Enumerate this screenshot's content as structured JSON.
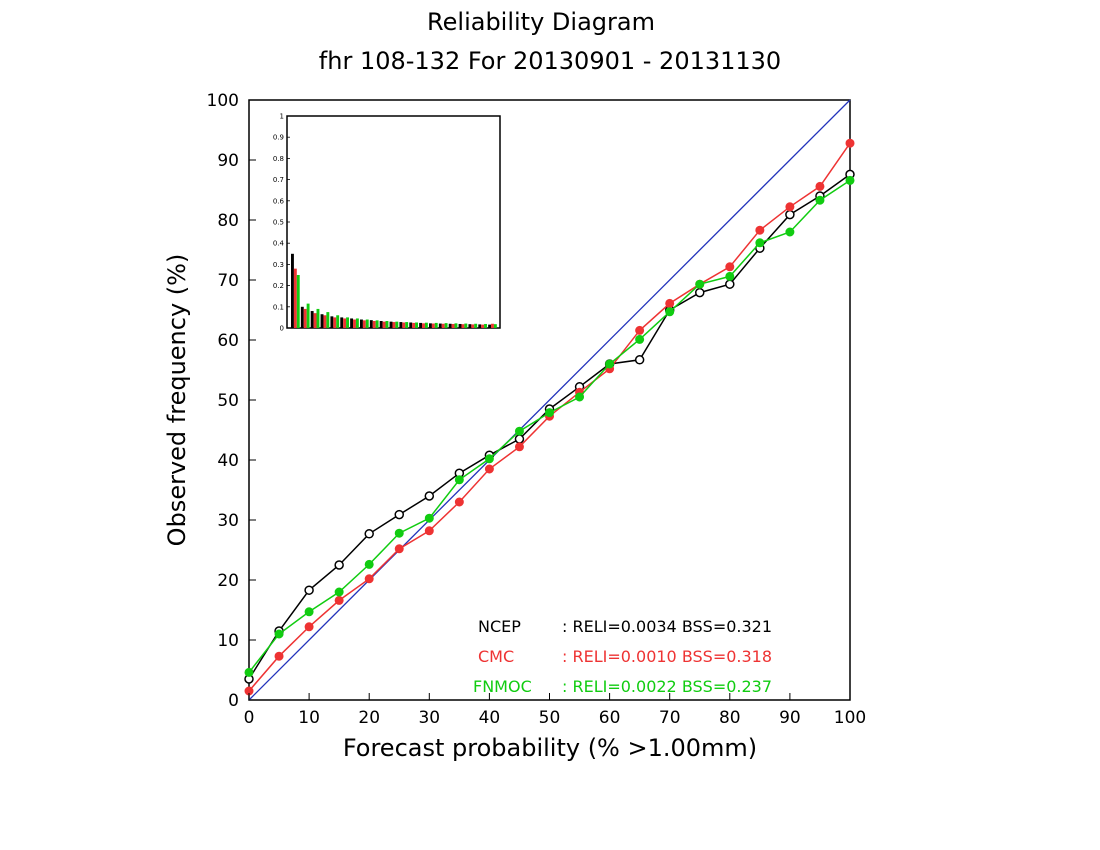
{
  "chart_data": {
    "type": "line",
    "title": "Reliability Diagram",
    "subtitle": "fhr 108-132 For 20130901 - 20131130",
    "xlabel": "Forecast probability (% >1.00mm)",
    "ylabel": "Observed frequency (%)",
    "xlim": [
      0,
      100
    ],
    "ylim": [
      0,
      100
    ],
    "xticks": [
      "0",
      "10",
      "20",
      "30",
      "40",
      "50",
      "60",
      "70",
      "80",
      "90",
      "100"
    ],
    "yticks": [
      "0",
      "10",
      "20",
      "30",
      "40",
      "50",
      "60",
      "70",
      "80",
      "90",
      "100"
    ],
    "x": [
      0,
      5,
      10,
      15,
      20,
      25,
      30,
      35,
      40,
      45,
      50,
      55,
      60,
      65,
      70,
      75,
      80,
      85,
      90,
      95,
      100
    ],
    "diagonal_color": "#2233bb",
    "grid": false,
    "legend_position": "bottom-right",
    "series": [
      {
        "name": "NCEP",
        "stats": ": RELI=0.0034 BSS=0.321",
        "color": "#000000",
        "marker": "open-circle",
        "values": [
          3.5,
          11.5,
          18.3,
          22.5,
          27.7,
          30.9,
          34.0,
          37.8,
          40.8,
          43.5,
          48.5,
          52.2,
          56.0,
          56.7,
          65.0,
          67.9,
          69.3,
          75.3,
          80.9,
          84.0,
          87.6
        ]
      },
      {
        "name": "CMC",
        "stats": ": RELI=0.0010 BSS=0.318",
        "color": "#ee3333",
        "marker": "filled-circle",
        "values": [
          1.5,
          7.3,
          12.2,
          16.6,
          20.2,
          25.2,
          28.2,
          33.0,
          38.5,
          42.2,
          47.3,
          51.3,
          55.2,
          61.6,
          66.1,
          69.3,
          72.2,
          78.3,
          82.2,
          85.6,
          92.8
        ]
      },
      {
        "name": "FNMOC",
        "stats": ": RELI=0.0022 BSS=0.237",
        "color": "#11cc11",
        "marker": "filled-circle",
        "values": [
          4.6,
          11.0,
          14.7,
          18.0,
          22.6,
          27.8,
          30.3,
          36.7,
          40.2,
          44.8,
          47.9,
          50.5,
          56.0,
          60.1,
          64.7,
          69.3,
          70.6,
          76.2,
          78.0,
          83.3,
          86.6
        ]
      }
    ],
    "inset": {
      "type": "bar",
      "ylim": [
        0,
        1
      ],
      "yticks": [
        "0",
        "0.1",
        "0.2",
        "0.3",
        "0.4",
        "0.5",
        "0.6",
        "0.7",
        "0.8",
        "0.9",
        "1"
      ],
      "series": [
        {
          "name": "NCEP",
          "color": "#000000",
          "values": [
            0.35,
            0.1,
            0.08,
            0.065,
            0.055,
            0.05,
            0.045,
            0.04,
            0.037,
            0.033,
            0.03,
            0.028,
            0.026,
            0.024,
            0.022,
            0.021,
            0.02,
            0.019,
            0.018,
            0.017,
            0.016
          ]
        },
        {
          "name": "CMC",
          "color": "#ee3333",
          "values": [
            0.28,
            0.09,
            0.07,
            0.06,
            0.05,
            0.045,
            0.04,
            0.036,
            0.033,
            0.03,
            0.028,
            0.026,
            0.024,
            0.022,
            0.021,
            0.02,
            0.019,
            0.018,
            0.017,
            0.016,
            0.02
          ]
        },
        {
          "name": "FNMOC",
          "color": "#11cc11",
          "values": [
            0.25,
            0.115,
            0.09,
            0.075,
            0.06,
            0.05,
            0.045,
            0.04,
            0.036,
            0.033,
            0.03,
            0.028,
            0.026,
            0.025,
            0.024,
            0.023,
            0.022,
            0.021,
            0.02,
            0.019,
            0.018
          ]
        }
      ]
    }
  }
}
